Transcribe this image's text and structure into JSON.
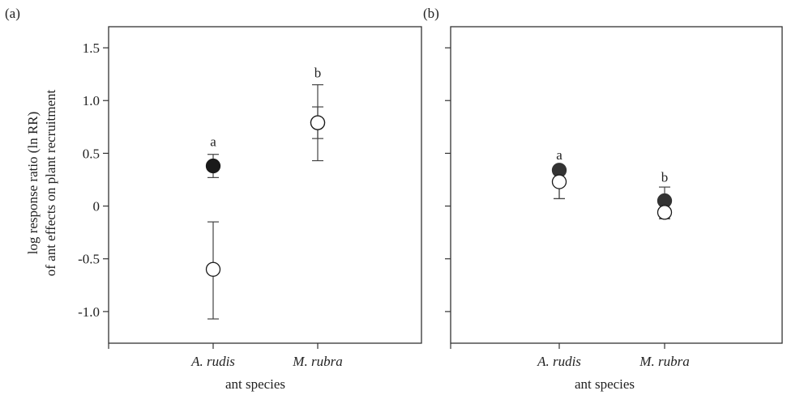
{
  "chart_data": [
    {
      "type": "scatter",
      "panel_label": "(a)",
      "xlabel": "ant species",
      "ylabel_lines": [
        "log response ratio (ln RR)",
        "of ant effects on plant recruitment"
      ],
      "categories": [
        "A. rudis",
        "M. rubra"
      ],
      "ylim": [
        -1.3,
        1.7
      ],
      "yticks": [
        1.5,
        1.0,
        0.5,
        0,
        -0.5,
        -1.0
      ],
      "ytick_labels": [
        "1.5",
        "1.0",
        "0.5",
        "0",
        "-0.5",
        "-1.0"
      ],
      "grid": false,
      "legend": "none",
      "series": [
        {
          "style": "filled",
          "color": "#1a1a1a",
          "points": [
            {
              "category": "A. rudis",
              "y": 0.38,
              "err_low": 0.27,
              "err_high": 0.49
            },
            {
              "category": "M. rubra",
              "y": 0.79,
              "err_low": 0.43,
              "err_high": 1.15
            }
          ]
        },
        {
          "style": "open",
          "color": "#1a1a1a",
          "points": [
            {
              "category": "A. rudis",
              "y": -0.6,
              "err_low": -1.07,
              "err_high": -0.15
            },
            {
              "category": "M. rubra",
              "y": 0.79,
              "err_low": 0.64,
              "err_high": 0.94
            }
          ]
        }
      ],
      "annotations": [
        {
          "category": "A. rudis",
          "text": "a",
          "y": 0.57
        },
        {
          "category": "M. rubra",
          "text": "b",
          "y": 1.22
        }
      ]
    },
    {
      "type": "scatter",
      "panel_label": "(b)",
      "xlabel": "ant species",
      "categories": [
        "A. rudis",
        "M. rubra"
      ],
      "ylim": [
        -1.3,
        1.7
      ],
      "yticks": [
        1.5,
        1.0,
        0.5,
        0,
        -0.5,
        -1.0
      ],
      "ytick_labels": [],
      "grid": false,
      "legend": "none",
      "series": [
        {
          "style": "filled",
          "color": "#333333",
          "points": [
            {
              "category": "A. rudis",
              "y": 0.34,
              "err_low": 0.07,
              "err_high": 0.34
            },
            {
              "category": "M. rubra",
              "y": 0.05,
              "err_low": -0.12,
              "err_high": 0.18
            }
          ]
        },
        {
          "style": "open",
          "color": "#1a1a1a",
          "points": [
            {
              "category": "A. rudis",
              "y": 0.23,
              "err_low": 0.07,
              "err_high": 0.23
            },
            {
              "category": "M. rubra",
              "y": -0.06,
              "err_low": -0.12,
              "err_high": -0.06
            }
          ]
        }
      ],
      "annotations": [
        {
          "category": "A. rudis",
          "text": "a",
          "y": 0.44
        },
        {
          "category": "M. rubra",
          "text": "b",
          "y": 0.23
        }
      ]
    }
  ]
}
